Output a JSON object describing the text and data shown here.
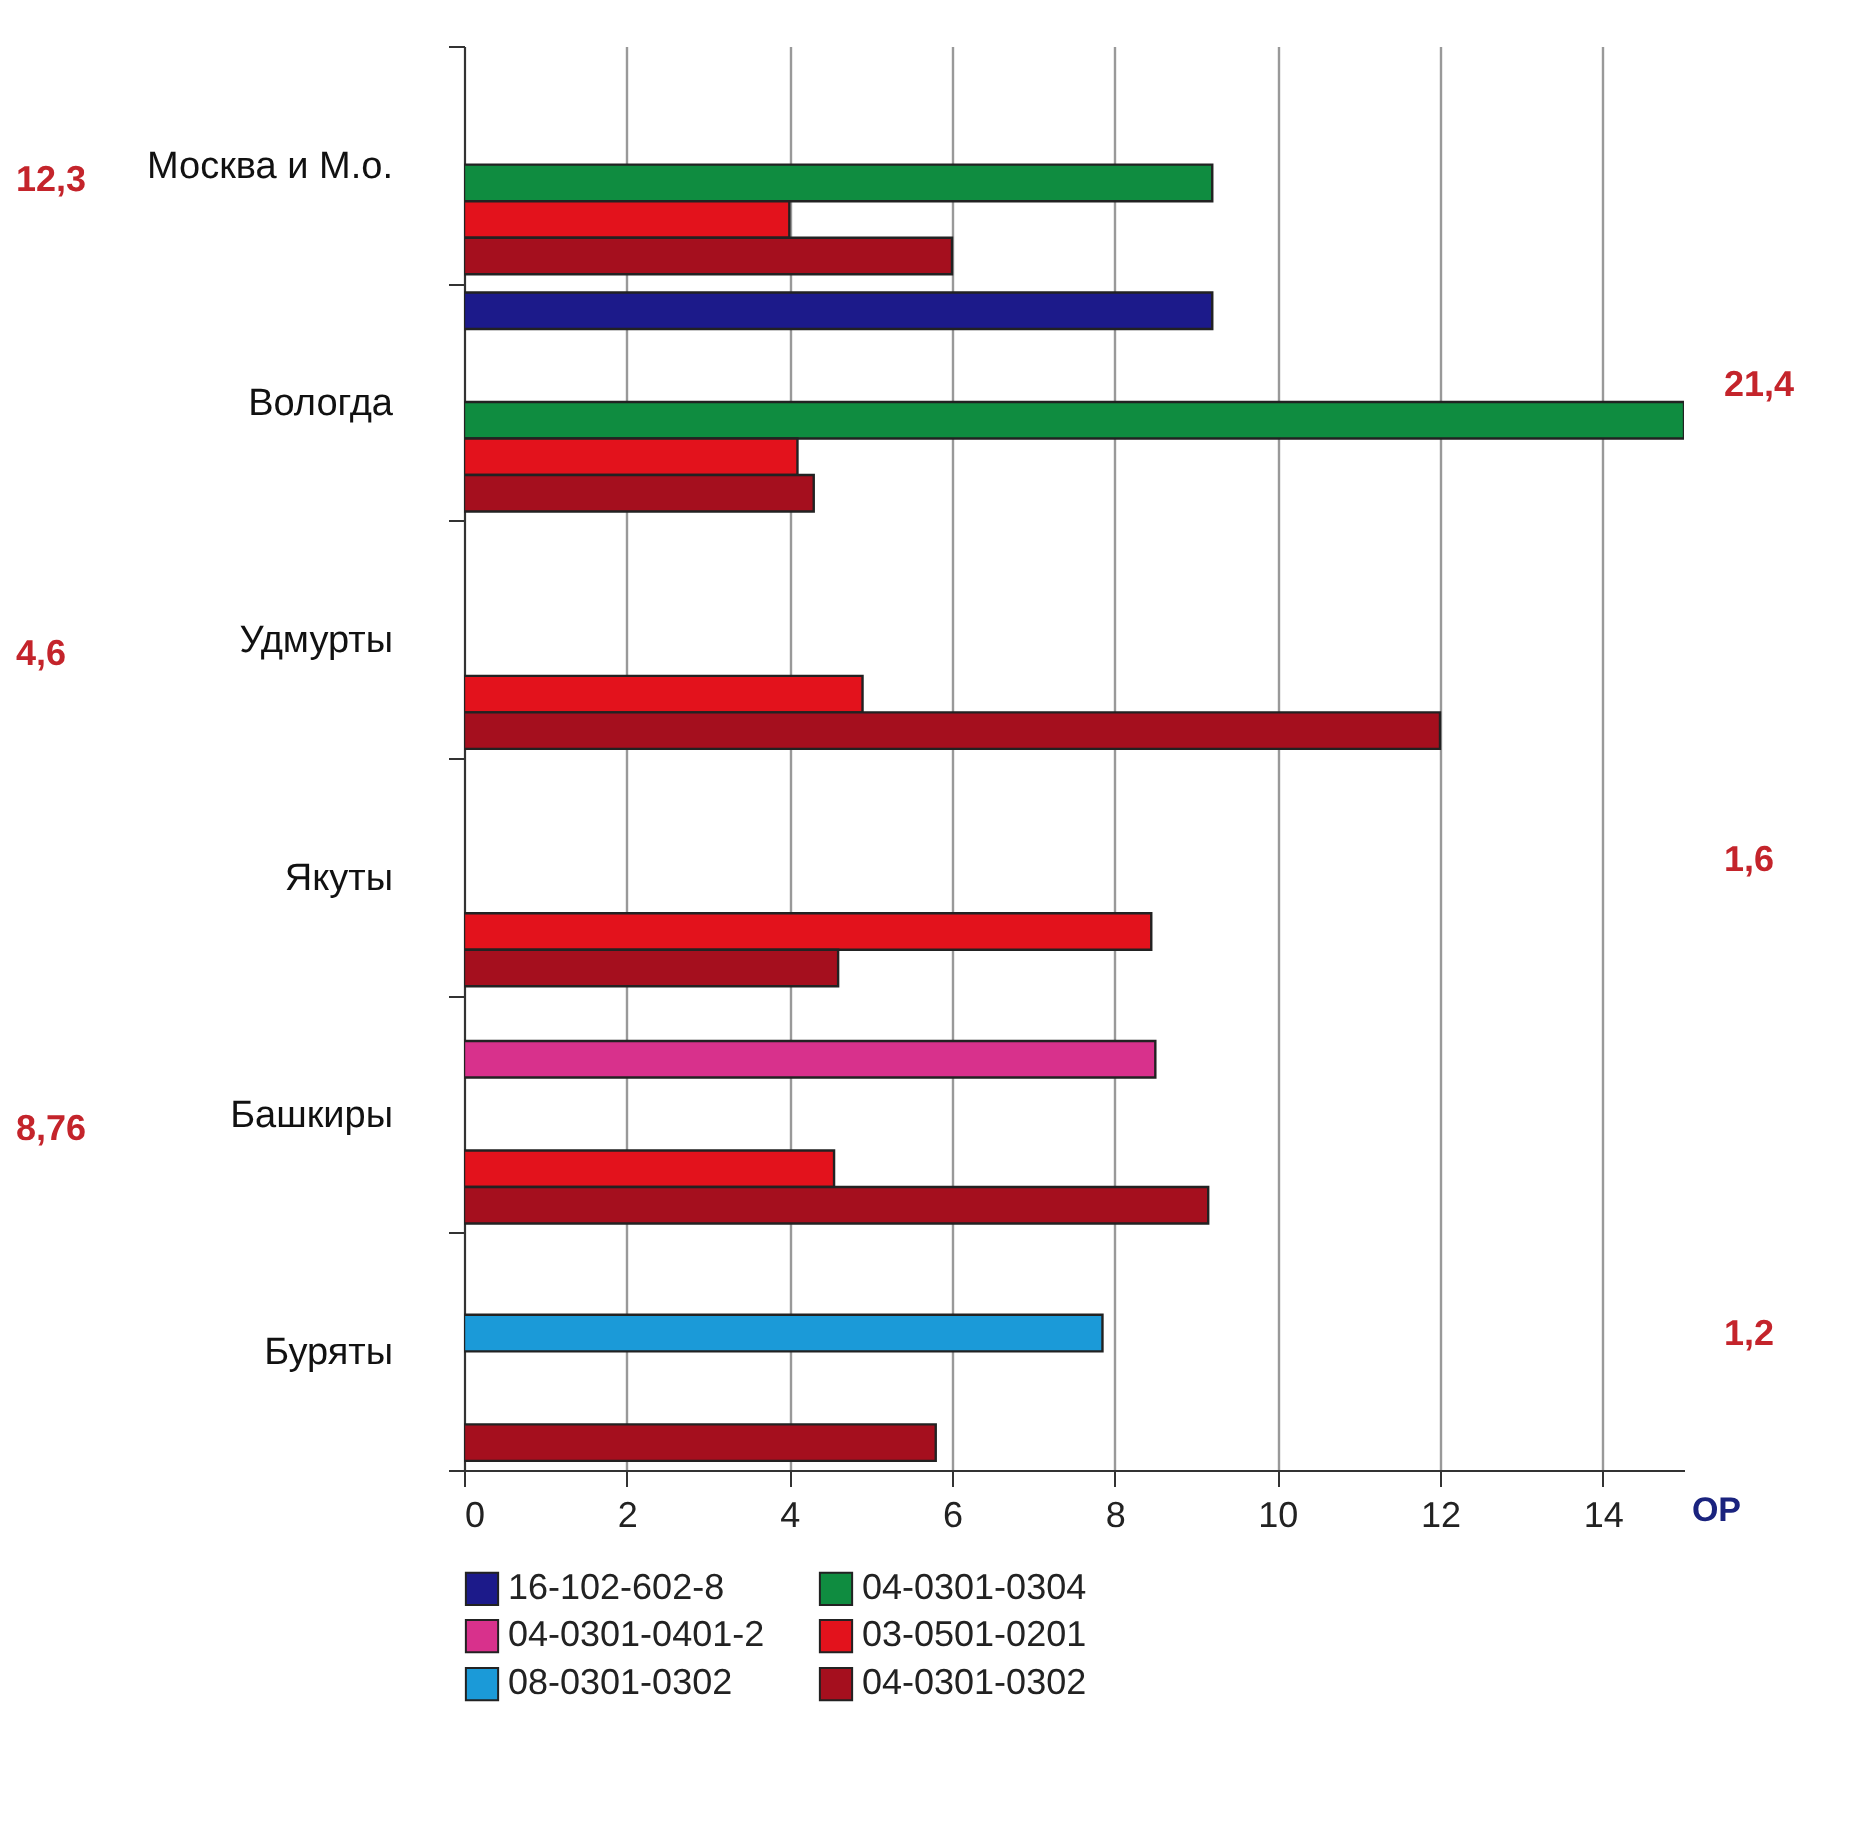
{
  "chart_data": {
    "type": "bar",
    "orientation": "horizontal",
    "xlabel": "ОР",
    "categories": [
      "Москва и М.о.",
      "Вологда",
      "Удмурты",
      "Якуты",
      "Башкиры",
      "Буряты"
    ],
    "series": [
      {
        "name": "16-102-602-8",
        "color": "#1c1a8a",
        "values": [
          null,
          9.2,
          null,
          null,
          null,
          null
        ]
      },
      {
        "name": "04-0301-0401-2",
        "color": "#d8318c",
        "values": [
          null,
          null,
          null,
          null,
          8.5,
          null
        ]
      },
      {
        "name": "08-0301-0302",
        "color": "#1b9ad8",
        "values": [
          null,
          null,
          null,
          null,
          null,
          7.85
        ]
      },
      {
        "name": "04-0301-0304",
        "color": "#0f8c40",
        "values": [
          9.2,
          15,
          null,
          null,
          null,
          null
        ]
      },
      {
        "name": "03-0501-0201",
        "color": "#e3121c",
        "values": [
          4.0,
          4.1,
          4.9,
          8.45,
          4.55,
          null
        ]
      },
      {
        "name": "04-0301-0302",
        "color": "#a50f1e",
        "values": [
          6.0,
          4.3,
          12.0,
          4.6,
          9.15,
          5.8
        ]
      }
    ],
    "xlim": [
      0,
      15
    ],
    "xticks": [
      0,
      2,
      4,
      6,
      8,
      10,
      12,
      14
    ],
    "grid": "x",
    "legend": "bottom",
    "annotations": [
      "12,3",
      "21,4",
      "4,6",
      "1,6",
      "8,76",
      "1,2"
    ]
  }
}
